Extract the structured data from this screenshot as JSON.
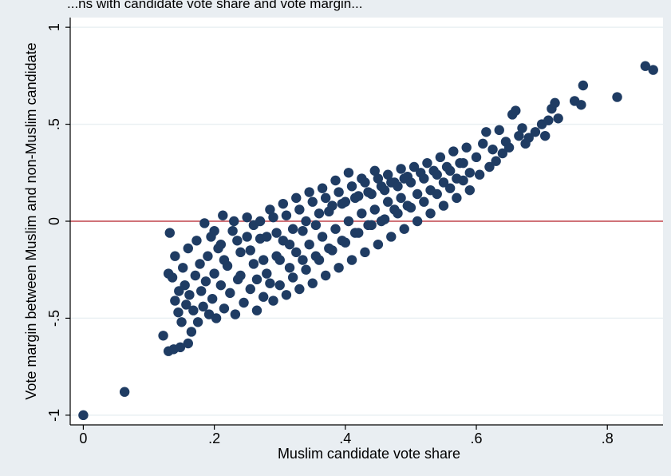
{
  "colors": {
    "background": "#e9eef2",
    "plot_background": "#ffffff",
    "marker": "#1f3c63",
    "reference_line": "#c0444b",
    "gridline": "#eaf0f3",
    "axis": "#000000"
  },
  "chart_data": {
    "type": "scatter",
    "title": "",
    "top_text_clipped": "...ns with candidate vote share and vote margin...",
    "xlabel": "Muslim candidate vote share",
    "ylabel": "Vote margin between Muslim and non-Muslim candidate",
    "xlim": [
      -0.02,
      0.885
    ],
    "ylim": [
      -1.05,
      1.05
    ],
    "x_ticks": [
      0,
      0.2,
      0.4,
      0.6,
      0.8
    ],
    "x_tick_labels": [
      "0",
      ".2",
      ".4",
      ".6",
      ".8"
    ],
    "y_ticks": [
      -1,
      -0.5,
      0,
      0.5,
      1
    ],
    "y_tick_labels": [
      "-1",
      "-.5",
      "0",
      ".5",
      "1"
    ],
    "grid": "horizontal",
    "reference_line_y": 0,
    "points": [
      [
        0.0,
        -1.0
      ],
      [
        0.063,
        -0.88
      ],
      [
        0.122,
        -0.59
      ],
      [
        0.13,
        -0.67
      ],
      [
        0.138,
        -0.66
      ],
      [
        0.148,
        -0.65
      ],
      [
        0.16,
        -0.63
      ],
      [
        0.13,
        -0.27
      ],
      [
        0.132,
        -0.06
      ],
      [
        0.136,
        -0.29
      ],
      [
        0.14,
        -0.18
      ],
      [
        0.14,
        -0.41
      ],
      [
        0.145,
        -0.47
      ],
      [
        0.146,
        -0.36
      ],
      [
        0.15,
        -0.52
      ],
      [
        0.152,
        -0.24
      ],
      [
        0.155,
        -0.33
      ],
      [
        0.157,
        -0.43
      ],
      [
        0.16,
        -0.14
      ],
      [
        0.162,
        -0.38
      ],
      [
        0.165,
        -0.57
      ],
      [
        0.168,
        -0.46
      ],
      [
        0.171,
        -0.28
      ],
      [
        0.173,
        -0.1
      ],
      [
        0.175,
        -0.52
      ],
      [
        0.178,
        -0.22
      ],
      [
        0.18,
        -0.36
      ],
      [
        0.183,
        -0.44
      ],
      [
        0.185,
        -0.01
      ],
      [
        0.187,
        -0.31
      ],
      [
        0.19,
        -0.18
      ],
      [
        0.192,
        -0.48
      ],
      [
        0.195,
        -0.08
      ],
      [
        0.197,
        -0.4
      ],
      [
        0.2,
        -0.27
      ],
      [
        0.203,
        -0.5
      ],
      [
        0.206,
        -0.14
      ],
      [
        0.21,
        -0.33
      ],
      [
        0.213,
        0.03
      ],
      [
        0.215,
        -0.45
      ],
      [
        0.22,
        -0.23
      ],
      [
        0.224,
        -0.37
      ],
      [
        0.228,
        -0.05
      ],
      [
        0.232,
        -0.48
      ],
      [
        0.236,
        -0.3
      ],
      [
        0.24,
        -0.16
      ],
      [
        0.245,
        -0.42
      ],
      [
        0.25,
        0.02
      ],
      [
        0.255,
        -0.35
      ],
      [
        0.26,
        -0.22
      ],
      [
        0.265,
        -0.46
      ],
      [
        0.27,
        -0.09
      ],
      [
        0.275,
        -0.39
      ],
      [
        0.28,
        -0.27
      ],
      [
        0.285,
        0.06
      ],
      [
        0.29,
        -0.41
      ],
      [
        0.295,
        -0.18
      ],
      [
        0.3,
        -0.33
      ],
      [
        0.305,
        0.09
      ],
      [
        0.31,
        -0.38
      ],
      [
        0.315,
        -0.12
      ],
      [
        0.32,
        -0.29
      ],
      [
        0.325,
        0.12
      ],
      [
        0.33,
        -0.35
      ],
      [
        0.335,
        -0.05
      ],
      [
        0.34,
        -0.25
      ],
      [
        0.345,
        0.15
      ],
      [
        0.35,
        -0.32
      ],
      [
        0.355,
        -0.02
      ],
      [
        0.36,
        -0.2
      ],
      [
        0.365,
        0.17
      ],
      [
        0.37,
        -0.28
      ],
      [
        0.375,
        0.05
      ],
      [
        0.38,
        -0.15
      ],
      [
        0.385,
        0.21
      ],
      [
        0.39,
        -0.24
      ],
      [
        0.395,
        0.09
      ],
      [
        0.4,
        -0.11
      ],
      [
        0.405,
        0.25
      ],
      [
        0.41,
        -0.2
      ],
      [
        0.415,
        0.12
      ],
      [
        0.42,
        -0.06
      ],
      [
        0.425,
        0.22
      ],
      [
        0.43,
        -0.16
      ],
      [
        0.435,
        0.15
      ],
      [
        0.44,
        -0.02
      ],
      [
        0.445,
        0.26
      ],
      [
        0.45,
        -0.12
      ],
      [
        0.455,
        0.18
      ],
      [
        0.46,
        0.01
      ],
      [
        0.465,
        0.24
      ],
      [
        0.47,
        -0.08
      ],
      [
        0.475,
        0.2
      ],
      [
        0.48,
        0.04
      ],
      [
        0.485,
        0.27
      ],
      [
        0.49,
        -0.04
      ],
      [
        0.495,
        0.23
      ],
      [
        0.5,
        0.07
      ],
      [
        0.505,
        0.28
      ],
      [
        0.51,
        0.0
      ],
      [
        0.515,
        0.25
      ],
      [
        0.52,
        0.1
      ],
      [
        0.525,
        0.3
      ],
      [
        0.53,
        0.04
      ],
      [
        0.535,
        0.26
      ],
      [
        0.54,
        0.14
      ],
      [
        0.545,
        0.33
      ],
      [
        0.55,
        0.08
      ],
      [
        0.555,
        0.28
      ],
      [
        0.56,
        0.17
      ],
      [
        0.565,
        0.36
      ],
      [
        0.57,
        0.12
      ],
      [
        0.575,
        0.3
      ],
      [
        0.58,
        0.21
      ],
      [
        0.585,
        0.38
      ],
      [
        0.59,
        0.16
      ],
      [
        0.6,
        0.33
      ],
      [
        0.605,
        0.24
      ],
      [
        0.61,
        0.4
      ],
      [
        0.615,
        0.46
      ],
      [
        0.62,
        0.28
      ],
      [
        0.625,
        0.37
      ],
      [
        0.63,
        0.31
      ],
      [
        0.635,
        0.47
      ],
      [
        0.64,
        0.35
      ],
      [
        0.645,
        0.41
      ],
      [
        0.65,
        0.38
      ],
      [
        0.655,
        0.55
      ],
      [
        0.66,
        0.57
      ],
      [
        0.665,
        0.44
      ],
      [
        0.67,
        0.48
      ],
      [
        0.675,
        0.4
      ],
      [
        0.68,
        0.43
      ],
      [
        0.69,
        0.46
      ],
      [
        0.7,
        0.5
      ],
      [
        0.705,
        0.44
      ],
      [
        0.71,
        0.52
      ],
      [
        0.715,
        0.58
      ],
      [
        0.72,
        0.61
      ],
      [
        0.725,
        0.53
      ],
      [
        0.75,
        0.62
      ],
      [
        0.76,
        0.6
      ],
      [
        0.763,
        0.7
      ],
      [
        0.815,
        0.64
      ],
      [
        0.858,
        0.8
      ],
      [
        0.87,
        0.78
      ],
      [
        0.2,
        -0.05
      ],
      [
        0.21,
        -0.12
      ],
      [
        0.215,
        -0.2
      ],
      [
        0.23,
        0.0
      ],
      [
        0.235,
        -0.1
      ],
      [
        0.24,
        -0.28
      ],
      [
        0.25,
        -0.08
      ],
      [
        0.255,
        -0.15
      ],
      [
        0.26,
        -0.02
      ],
      [
        0.265,
        -0.3
      ],
      [
        0.27,
        0.0
      ],
      [
        0.275,
        -0.2
      ],
      [
        0.28,
        -0.08
      ],
      [
        0.285,
        -0.32
      ],
      [
        0.29,
        0.02
      ],
      [
        0.295,
        -0.06
      ],
      [
        0.3,
        -0.2
      ],
      [
        0.305,
        -0.1
      ],
      [
        0.31,
        0.03
      ],
      [
        0.315,
        -0.24
      ],
      [
        0.32,
        -0.04
      ],
      [
        0.325,
        -0.16
      ],
      [
        0.33,
        0.06
      ],
      [
        0.335,
        -0.2
      ],
      [
        0.34,
        0.0
      ],
      [
        0.345,
        -0.12
      ],
      [
        0.35,
        0.1
      ],
      [
        0.355,
        -0.18
      ],
      [
        0.36,
        0.04
      ],
      [
        0.365,
        -0.08
      ],
      [
        0.37,
        0.12
      ],
      [
        0.375,
        -0.14
      ],
      [
        0.38,
        0.08
      ],
      [
        0.385,
        -0.04
      ],
      [
        0.39,
        0.15
      ],
      [
        0.395,
        -0.1
      ],
      [
        0.4,
        0.1
      ],
      [
        0.405,
        0.0
      ],
      [
        0.41,
        0.18
      ],
      [
        0.415,
        -0.06
      ],
      [
        0.42,
        0.13
      ],
      [
        0.425,
        0.04
      ],
      [
        0.43,
        0.2
      ],
      [
        0.435,
        -0.02
      ],
      [
        0.44,
        0.14
      ],
      [
        0.445,
        0.06
      ],
      [
        0.45,
        0.22
      ],
      [
        0.455,
        0.0
      ],
      [
        0.46,
        0.16
      ],
      [
        0.465,
        0.1
      ],
      [
        0.47,
        0.2
      ],
      [
        0.475,
        0.06
      ],
      [
        0.48,
        0.18
      ],
      [
        0.485,
        0.12
      ],
      [
        0.49,
        0.22
      ],
      [
        0.495,
        0.08
      ],
      [
        0.5,
        0.2
      ],
      [
        0.51,
        0.14
      ],
      [
        0.52,
        0.22
      ],
      [
        0.53,
        0.16
      ],
      [
        0.54,
        0.24
      ],
      [
        0.55,
        0.2
      ],
      [
        0.56,
        0.26
      ],
      [
        0.57,
        0.22
      ],
      [
        0.58,
        0.3
      ],
      [
        0.59,
        0.25
      ]
    ]
  }
}
